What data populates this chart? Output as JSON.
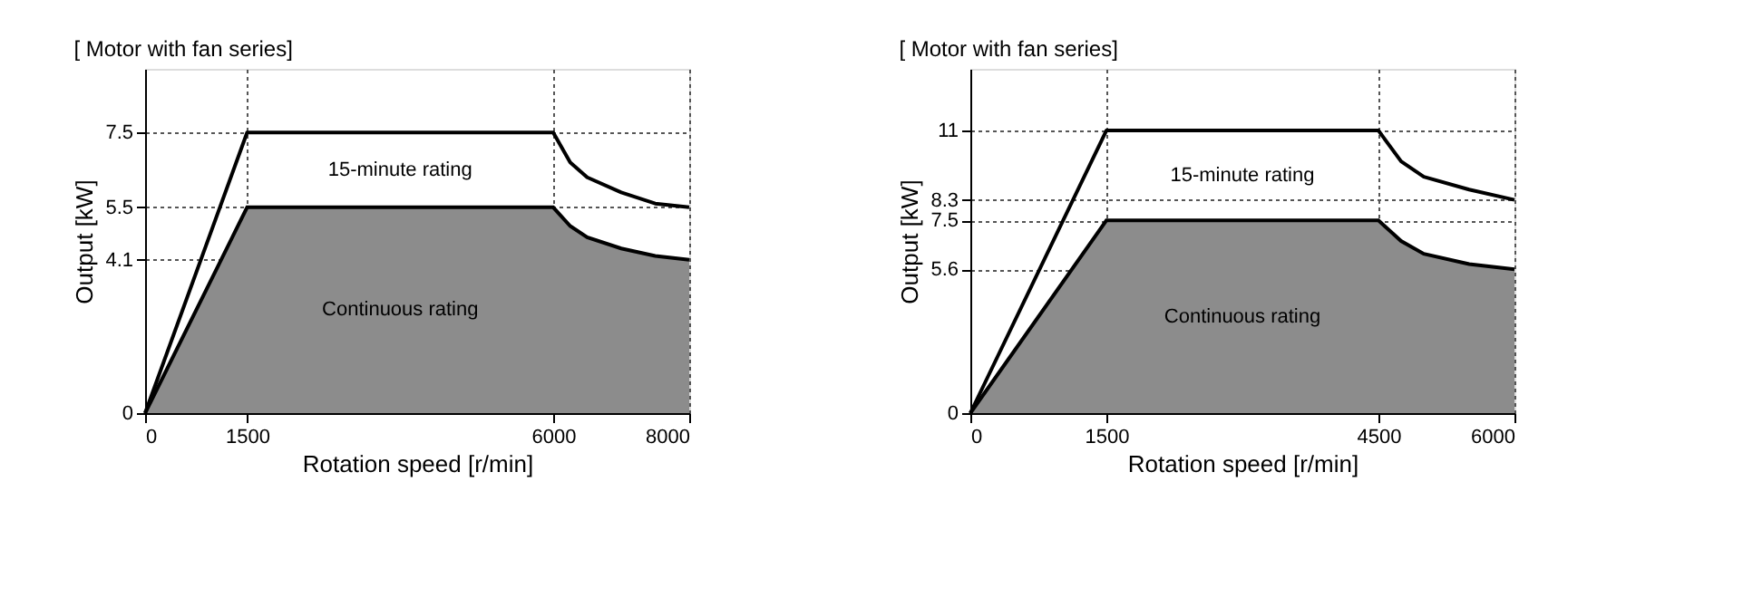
{
  "chart_data": [
    {
      "type": "line",
      "title": "[ Motor with fan series]",
      "xlabel": "Rotation speed [r/min]",
      "ylabel": "Output [kW]",
      "x": [
        0,
        1500,
        6000,
        6250,
        6500,
        7000,
        7500,
        8000
      ],
      "series": [
        {
          "name": "15-minute rating",
          "color": "#000000",
          "values": [
            0,
            7.5,
            7.5,
            6.7,
            6.3,
            5.9,
            5.6,
            5.5
          ]
        },
        {
          "name": "Continuous rating",
          "type": "area",
          "color": "#8c8c8c",
          "values": [
            0,
            5.5,
            5.5,
            5.0,
            4.7,
            4.4,
            4.2,
            4.1
          ]
        }
      ],
      "xlim": [
        0,
        8000
      ],
      "xticks": [
        0,
        1500,
        6000,
        8000
      ],
      "ylim": [
        0,
        9.2
      ],
      "yticks": [
        0,
        4.1,
        5.5,
        7.5
      ],
      "grid": true
    },
    {
      "type": "line",
      "title": "[ Motor with fan series]",
      "xlabel": "Rotation speed [r/min]",
      "ylabel": "Output [kW]",
      "x": [
        0,
        1500,
        4500,
        4750,
        5000,
        5500,
        6000
      ],
      "series": [
        {
          "name": "15-minute rating",
          "color": "#000000",
          "values": [
            0,
            11,
            11,
            9.8,
            9.2,
            8.7,
            8.3
          ]
        },
        {
          "name": "Continuous rating",
          "type": "area",
          "color": "#8c8c8c",
          "values": [
            0,
            7.5,
            7.5,
            6.7,
            6.2,
            5.8,
            5.6
          ]
        }
      ],
      "xlim": [
        0,
        6000
      ],
      "xticks": [
        0,
        1500,
        4500,
        6000
      ],
      "ylim": [
        0,
        13.4
      ],
      "yticks": [
        0,
        5.6,
        7.5,
        8.3,
        11
      ],
      "grid": true
    }
  ]
}
